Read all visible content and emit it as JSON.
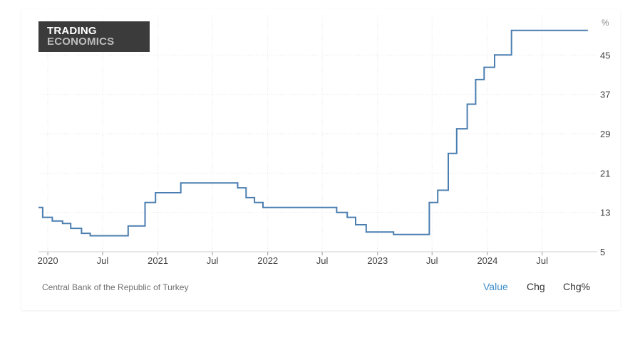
{
  "brand": {
    "line1": "TRADING",
    "line2": "ECONOMICS"
  },
  "source": "Central Bank of the Republic of Turkey",
  "tabs": [
    {
      "label": "Value",
      "active": true
    },
    {
      "label": "Chg",
      "active": false
    },
    {
      "label": "Chg%",
      "active": false
    }
  ],
  "colors": {
    "line": "#4a7eb0",
    "active_tab": "#3f8fce",
    "grid": "#e6e6e6"
  },
  "chart_data": {
    "type": "line",
    "step": true,
    "unit": "%",
    "ylim": [
      5,
      53
    ],
    "yticks": [
      5,
      13,
      21,
      29,
      37,
      45
    ],
    "xlim": [
      "2019-12-01",
      "2024-12-31"
    ],
    "xticks": [
      {
        "label": "2020",
        "date": "2020-01-01"
      },
      {
        "label": "Jul",
        "date": "2020-07-01"
      },
      {
        "label": "2021",
        "date": "2021-01-01"
      },
      {
        "label": "Jul",
        "date": "2021-07-01"
      },
      {
        "label": "2022",
        "date": "2022-01-01"
      },
      {
        "label": "Jul",
        "date": "2022-07-01"
      },
      {
        "label": "2023",
        "date": "2023-01-01"
      },
      {
        "label": "Jul",
        "date": "2023-07-01"
      },
      {
        "label": "2024",
        "date": "2024-01-01"
      },
      {
        "label": "Jul",
        "date": "2024-07-01"
      }
    ],
    "grid": true,
    "series": [
      {
        "values": [
          {
            "date": "2019-12-01",
            "value": 14.0
          },
          {
            "date": "2019-12-15",
            "value": 12.0
          },
          {
            "date": "2020-01-16",
            "value": 11.25
          },
          {
            "date": "2020-02-19",
            "value": 10.75
          },
          {
            "date": "2020-03-17",
            "value": 9.75
          },
          {
            "date": "2020-04-22",
            "value": 8.75
          },
          {
            "date": "2020-05-21",
            "value": 8.25
          },
          {
            "date": "2020-09-24",
            "value": 10.25
          },
          {
            "date": "2020-11-19",
            "value": 15.0
          },
          {
            "date": "2020-12-24",
            "value": 17.0
          },
          {
            "date": "2021-03-18",
            "value": 19.0
          },
          {
            "date": "2021-09-23",
            "value": 18.0
          },
          {
            "date": "2021-10-21",
            "value": 16.0
          },
          {
            "date": "2021-11-18",
            "value": 15.0
          },
          {
            "date": "2021-12-16",
            "value": 14.0
          },
          {
            "date": "2022-08-18",
            "value": 13.0
          },
          {
            "date": "2022-09-22",
            "value": 12.0
          },
          {
            "date": "2022-10-20",
            "value": 10.5
          },
          {
            "date": "2022-11-24",
            "value": 9.0
          },
          {
            "date": "2023-02-23",
            "value": 8.5
          },
          {
            "date": "2023-06-22",
            "value": 15.0
          },
          {
            "date": "2023-07-20",
            "value": 17.5
          },
          {
            "date": "2023-08-24",
            "value": 25.0
          },
          {
            "date": "2023-09-21",
            "value": 30.0
          },
          {
            "date": "2023-10-26",
            "value": 35.0
          },
          {
            "date": "2023-11-23",
            "value": 40.0
          },
          {
            "date": "2023-12-21",
            "value": 42.5
          },
          {
            "date": "2024-01-25",
            "value": 45.0
          },
          {
            "date": "2024-03-21",
            "value": 50.0
          },
          {
            "date": "2024-11-30",
            "value": 50.0
          }
        ]
      }
    ]
  }
}
